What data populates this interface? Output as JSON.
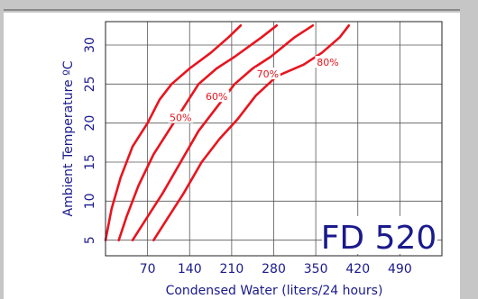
{
  "chart_data": {
    "type": "line",
    "xlabel": "Condensed Water (liters/24 hours)",
    "ylabel": "Ambient Temperature ºC",
    "xlim": [
      0,
      560
    ],
    "ylim": [
      3,
      33
    ],
    "xticks": [
      70,
      140,
      210,
      280,
      350,
      420,
      490
    ],
    "yticks": [
      5,
      10,
      15,
      20,
      25,
      30
    ],
    "grid": true,
    "annotation": "FD 520",
    "colors": {
      "series": "#e8141e",
      "annotation": "#1a1a8c",
      "axis_text": "#1a1a8c",
      "grid": "#555555"
    },
    "series": [
      {
        "name": "50%",
        "points": [
          [
            -2,
            5
          ],
          [
            10,
            9
          ],
          [
            25,
            13
          ],
          [
            45,
            17
          ],
          [
            70,
            20
          ],
          [
            90,
            23
          ],
          [
            110,
            25
          ],
          [
            140,
            27
          ],
          [
            175,
            29
          ],
          [
            205,
            31
          ],
          [
            225,
            32.5
          ]
        ]
      },
      {
        "name": "60%",
        "points": [
          [
            22,
            5
          ],
          [
            35,
            8
          ],
          [
            55,
            12
          ],
          [
            80,
            16
          ],
          [
            105,
            19
          ],
          [
            130,
            22
          ],
          [
            155,
            25
          ],
          [
            185,
            27
          ],
          [
            215,
            28.5
          ],
          [
            260,
            31
          ],
          [
            285,
            32.5
          ]
        ]
      },
      {
        "name": "70%",
        "points": [
          [
            45,
            5
          ],
          [
            70,
            8
          ],
          [
            95,
            11
          ],
          [
            125,
            15
          ],
          [
            155,
            19
          ],
          [
            185,
            22
          ],
          [
            215,
            25
          ],
          [
            245,
            27
          ],
          [
            275,
            28.5
          ],
          [
            315,
            31
          ],
          [
            345,
            32.5
          ]
        ]
      },
      {
        "name": "80%",
        "points": [
          [
            80,
            5
          ],
          [
            105,
            8
          ],
          [
            130,
            11
          ],
          [
            160,
            15
          ],
          [
            190,
            18
          ],
          [
            220,
            20.5
          ],
          [
            250,
            23.5
          ],
          [
            285,
            26
          ],
          [
            330,
            27.5
          ],
          [
            360,
            29
          ],
          [
            390,
            31
          ],
          [
            405,
            32.5
          ]
        ]
      }
    ],
    "labels": [
      {
        "text": "50%",
        "x": 125,
        "y": 20.7
      },
      {
        "text": "60%",
        "x": 185,
        "y": 23.4
      },
      {
        "text": "70%",
        "x": 270,
        "y": 26.3
      },
      {
        "text": "80%",
        "x": 370,
        "y": 27.8
      }
    ]
  }
}
